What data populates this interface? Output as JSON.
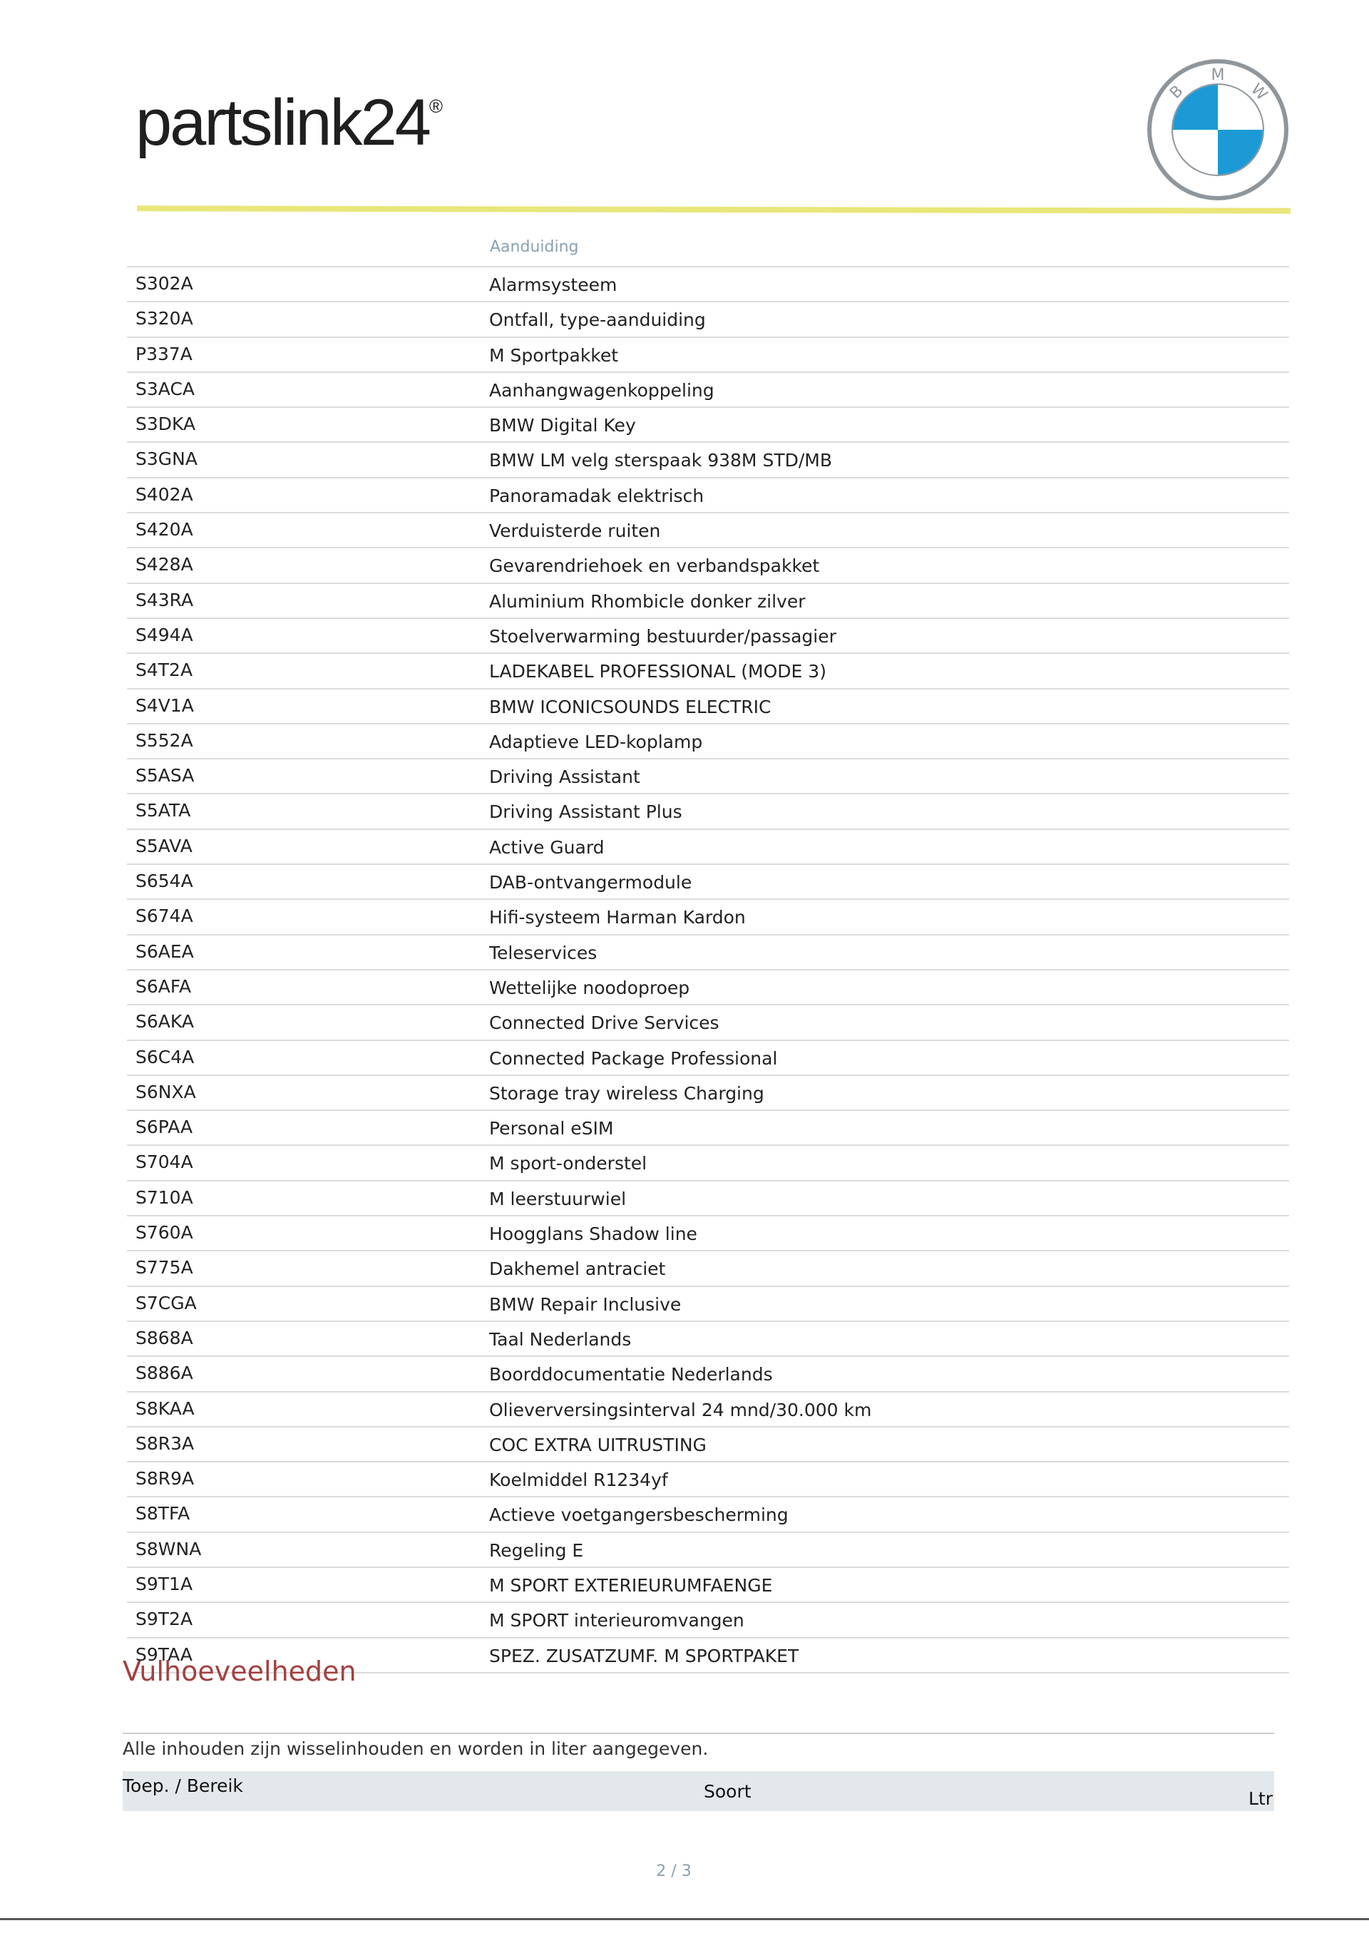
{
  "header": {
    "logo_text": "partslink24",
    "logo_mark": "®",
    "brand_logo_letters": "BMW"
  },
  "colors": {
    "accent_line": "#e9e67a",
    "section_title": "#a2403f",
    "bmw_blue": "#1c9ad6"
  },
  "options_table": {
    "column_header": "Aanduiding",
    "rows": [
      {
        "code": "S302A",
        "desc": "Alarmsysteem"
      },
      {
        "code": "S320A",
        "desc": "Ontfall, type-aanduiding"
      },
      {
        "code": "P337A",
        "desc": "M Sportpakket"
      },
      {
        "code": "S3ACA",
        "desc": "Aanhangwagenkoppeling"
      },
      {
        "code": "S3DKA",
        "desc": "BMW Digital Key"
      },
      {
        "code": "S3GNA",
        "desc": "BMW LM velg sterspaak 938M STD/MB"
      },
      {
        "code": "S402A",
        "desc": "Panoramadak elektrisch"
      },
      {
        "code": "S420A",
        "desc": "Verduisterde ruiten"
      },
      {
        "code": "S428A",
        "desc": "Gevarendriehoek en verbandspakket"
      },
      {
        "code": "S43RA",
        "desc": "Aluminium Rhombicle donker zilver"
      },
      {
        "code": "S494A",
        "desc": "Stoelverwarming bestuurder/passagier"
      },
      {
        "code": "S4T2A",
        "desc": "LADEKABEL PROFESSIONAL (MODE 3)"
      },
      {
        "code": "S4V1A",
        "desc": "BMW ICONICSOUNDS ELECTRIC"
      },
      {
        "code": "S552A",
        "desc": "Adaptieve LED-koplamp"
      },
      {
        "code": "S5ASA",
        "desc": "Driving Assistant"
      },
      {
        "code": "S5ATA",
        "desc": "Driving Assistant Plus"
      },
      {
        "code": "S5AVA",
        "desc": "Active Guard"
      },
      {
        "code": "S654A",
        "desc": "DAB-ontvangermodule"
      },
      {
        "code": "S674A",
        "desc": "Hifi-systeem Harman Kardon"
      },
      {
        "code": "S6AEA",
        "desc": "Teleservices"
      },
      {
        "code": "S6AFA",
        "desc": "Wettelijke noodoproep"
      },
      {
        "code": "S6AKA",
        "desc": "Connected Drive Services"
      },
      {
        "code": "S6C4A",
        "desc": "Connected Package Professional"
      },
      {
        "code": "S6NXA",
        "desc": "Storage tray wireless Charging"
      },
      {
        "code": "S6PAA",
        "desc": "Personal eSIM"
      },
      {
        "code": "S704A",
        "desc": "M sport-onderstel"
      },
      {
        "code": "S710A",
        "desc": "M leerstuurwiel"
      },
      {
        "code": "S760A",
        "desc": "Hoogglans Shadow line"
      },
      {
        "code": "S775A",
        "desc": "Dakhemel antraciet"
      },
      {
        "code": "S7CGA",
        "desc": "BMW Repair Inclusive"
      },
      {
        "code": "S868A",
        "desc": "Taal Nederlands"
      },
      {
        "code": "S886A",
        "desc": "Boorddocumentatie Nederlands"
      },
      {
        "code": "S8KAA",
        "desc": "Olieverversingsinterval 24 mnd/30.000 km"
      },
      {
        "code": "S8R3A",
        "desc": "COC EXTRA UITRUSTING"
      },
      {
        "code": "S8R9A",
        "desc": "Koelmiddel R1234yf"
      },
      {
        "code": "S8TFA",
        "desc": "Actieve voetgangersbescherming"
      },
      {
        "code": "S8WNA",
        "desc": "Regeling E"
      },
      {
        "code": "S9T1A",
        "desc": "M SPORT EXTERIEURUMFAENGE"
      },
      {
        "code": "S9T2A",
        "desc": "M SPORT interieuromvangen"
      },
      {
        "code": "S9TAA",
        "desc": "SPEZ. ZUSATZUMF. M SPORTPAKET"
      }
    ]
  },
  "fluids": {
    "title": "Vulhoeveelheden",
    "note": "Alle inhouden zijn wisselinhouden en worden in liter aangegeven.",
    "columns": [
      "Toep. / Bereik",
      "Soort",
      "Ltr"
    ]
  },
  "footer": {
    "page": "2 / 3"
  }
}
